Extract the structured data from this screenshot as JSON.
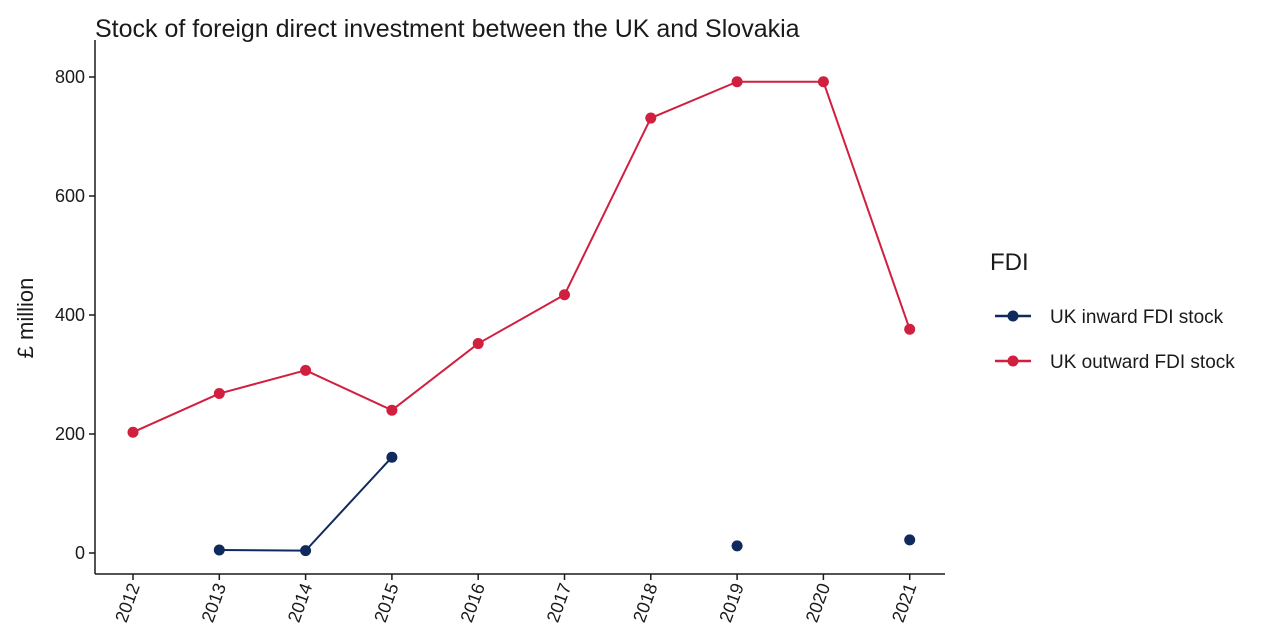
{
  "chart_data": {
    "type": "line",
    "title": "Stock of foreign direct investment between the UK and Slovakia",
    "xlabel": "",
    "ylabel": "£ million",
    "x": [
      "2012",
      "2013",
      "2014",
      "2015",
      "2016",
      "2017",
      "2018",
      "2019",
      "2020",
      "2021"
    ],
    "ylim": [
      -35,
      830
    ],
    "yticks": [
      0,
      200,
      400,
      600,
      800
    ],
    "grid": false,
    "legend": {
      "title": "FDI",
      "placement": "right"
    },
    "series": [
      {
        "name": "UK inward FDI stock",
        "color": "#0f2a5c",
        "values": [
          null,
          5,
          4,
          161,
          null,
          null,
          null,
          12,
          null,
          22
        ]
      },
      {
        "name": "UK outward FDI stock",
        "color": "#d11f3f",
        "values": [
          203,
          268,
          307,
          240,
          352,
          434,
          731,
          792,
          792,
          376
        ]
      }
    ]
  }
}
